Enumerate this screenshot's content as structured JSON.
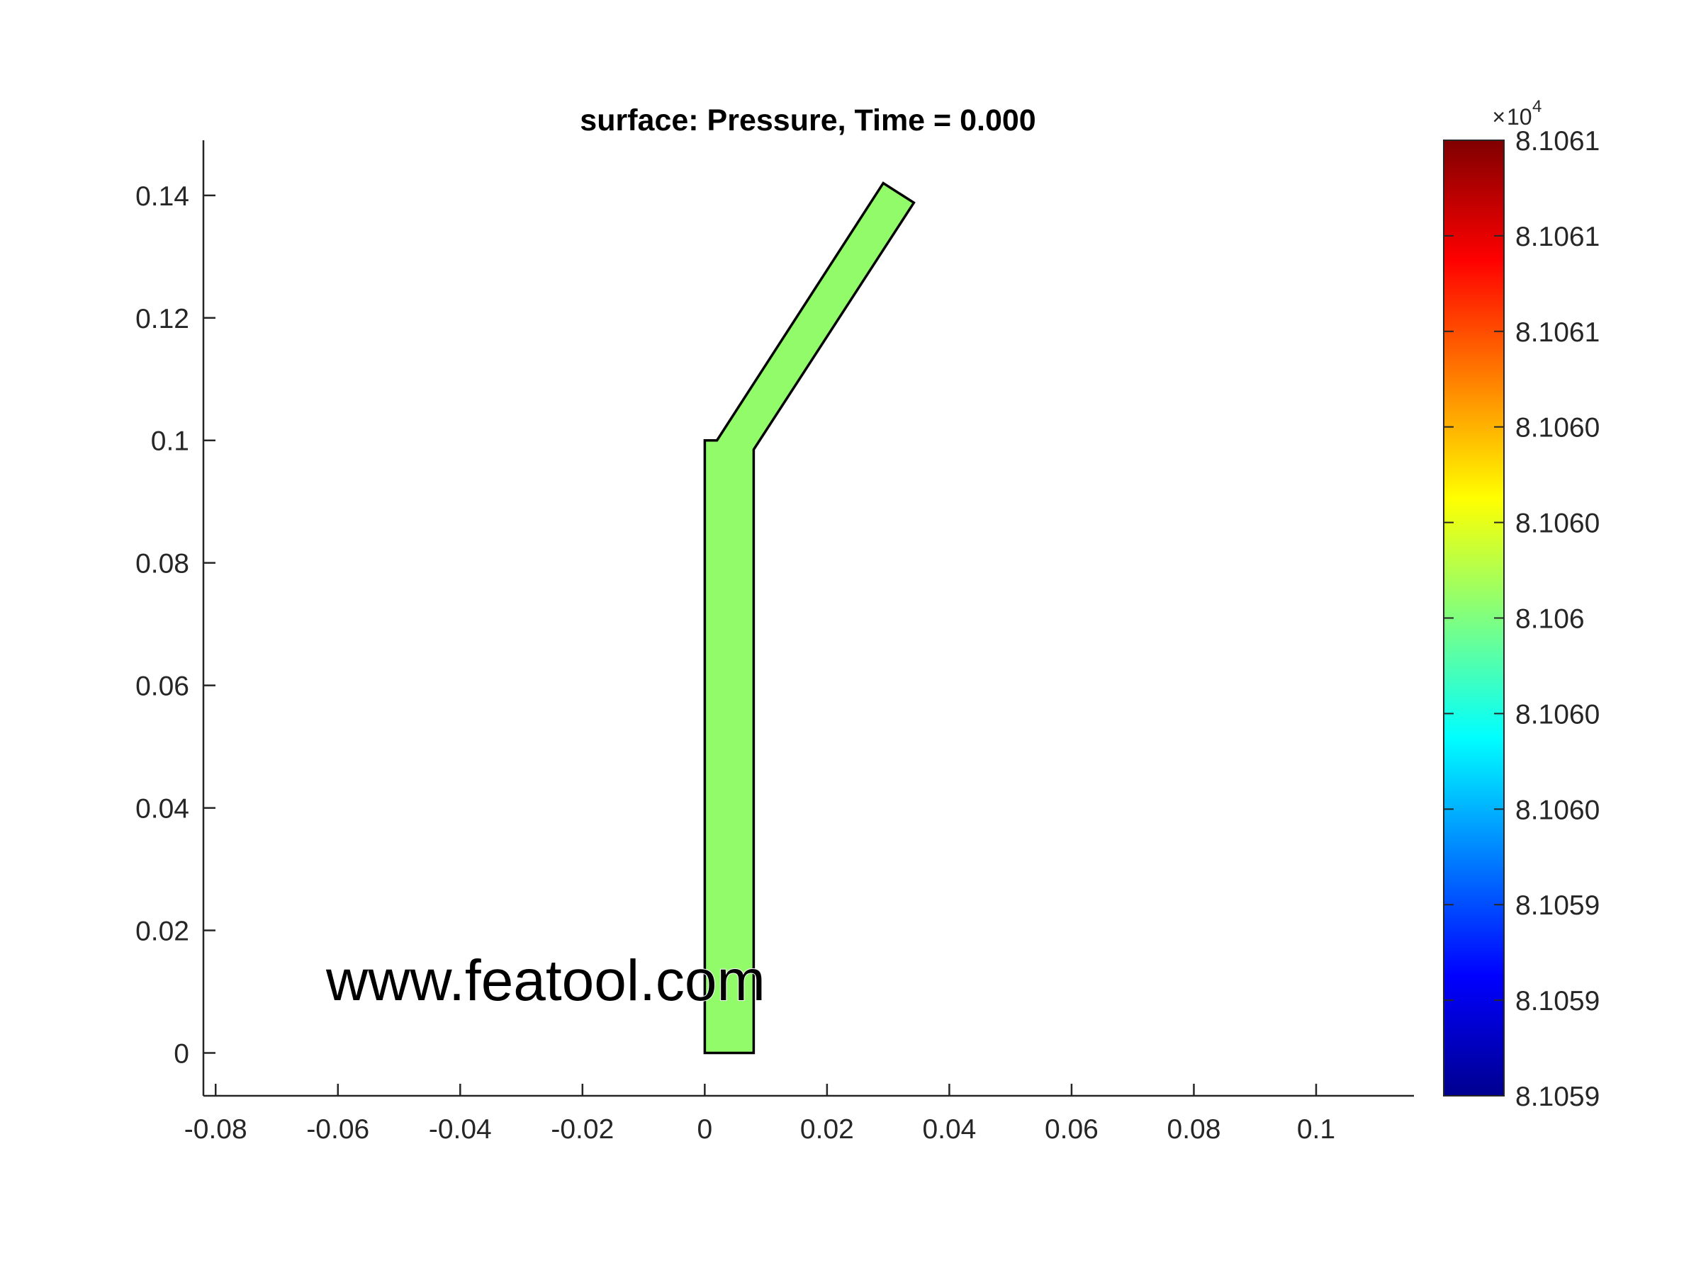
{
  "chart_data": {
    "type": "surface",
    "title": "surface: Pressure, Time = 0.000",
    "watermark": "www.featool.com",
    "xlim": [
      -0.082,
      0.116
    ],
    "ylim": [
      -0.007,
      0.149
    ],
    "x_ticks": [
      -0.08,
      -0.06,
      -0.04,
      -0.02,
      0,
      0.02,
      0.04,
      0.06,
      0.08,
      0.1
    ],
    "x_tick_labels": [
      "-0.08",
      "-0.06",
      "-0.04",
      "-0.02",
      "0",
      "0.02",
      "0.04",
      "0.06",
      "0.08",
      "0.1"
    ],
    "y_ticks": [
      0,
      0.02,
      0.04,
      0.06,
      0.08,
      0.1,
      0.12,
      0.14
    ],
    "y_tick_labels": [
      "0",
      "0.02",
      "0.04",
      "0.06",
      "0.08",
      "0.1",
      "0.12",
      "0.14"
    ],
    "domain_polygon": [
      [
        0,
        0
      ],
      [
        0.008,
        0
      ],
      [
        0.008,
        0.0985
      ],
      [
        0.0342,
        0.1388
      ],
      [
        0.0292,
        0.142
      ],
      [
        0.002,
        0.1
      ],
      [
        0,
        0.1
      ]
    ],
    "field_value": 81060,
    "field_color": "#91fb69",
    "colorbar": {
      "colormap": "jet",
      "multiplier_base": "10",
      "multiplier_exponent": "4",
      "range": [
        81059,
        81061
      ],
      "tick_labels": [
        "8.1061",
        "8.1061",
        "8.1061",
        "8.1060",
        "8.1060",
        "8.106",
        "8.1060",
        "8.1060",
        "8.1059",
        "8.1059",
        "8.1059"
      ]
    }
  }
}
